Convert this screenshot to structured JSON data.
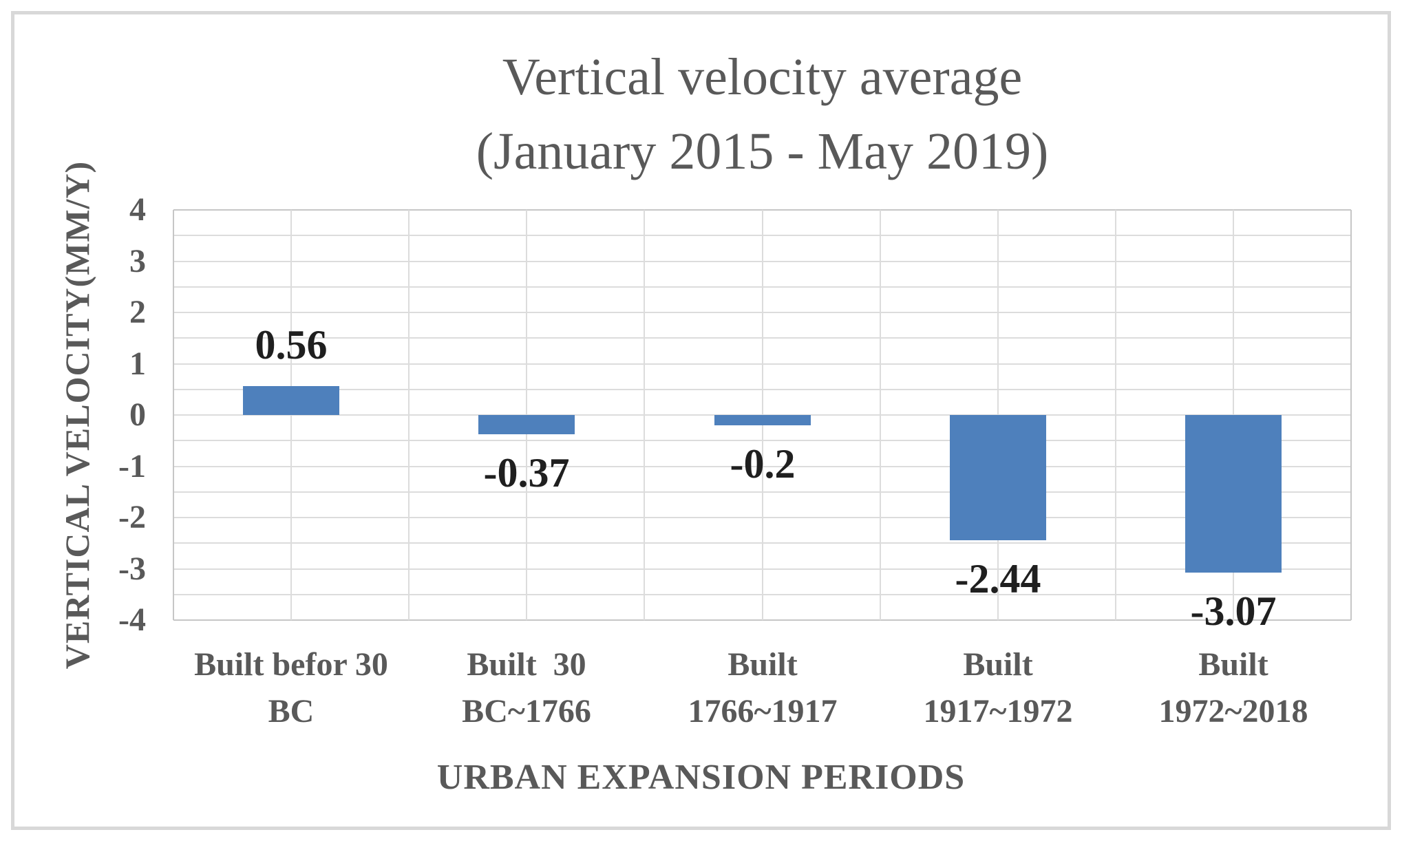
{
  "chart_data": {
    "type": "bar",
    "title": "Vertical velocity average (January 2015 - May 2019)",
    "title_lines": [
      "Vertical velocity average",
      "(January 2015 - May 2019)"
    ],
    "xlabel": "URBAN EXPANSION PERIODS",
    "ylabel": "VERTICAL VELOCITY(MM/Y)",
    "categories": [
      "Built befor 30\nBC",
      "Built  30\nBC~1766",
      "Built\n1766~1917",
      "Built\n1917~1972",
      "Built\n1972~2018"
    ],
    "values": [
      0.56,
      -0.37,
      -0.2,
      -2.44,
      -3.07
    ],
    "data_labels": [
      "0.56",
      "-0.37",
      "-0.2",
      "-2.44",
      "-3.07"
    ],
    "yticks": [
      4,
      3,
      2,
      1,
      0,
      -1,
      -2,
      -3,
      -4
    ],
    "ylim": [
      -4,
      4
    ],
    "gridline_step": 0.5,
    "grid": true,
    "legend_position": "none",
    "series_name": "Vertical velocity average",
    "colors": {
      "bar": "#4e80bc",
      "gridline": "#dcdcdc",
      "plot_border": "#c6c6c6",
      "frame_border": "#d8d8d8",
      "title_text": "#595959",
      "axis_text": "#595959",
      "data_label_text": "#1f1f1f",
      "background": "#ffffff"
    }
  }
}
